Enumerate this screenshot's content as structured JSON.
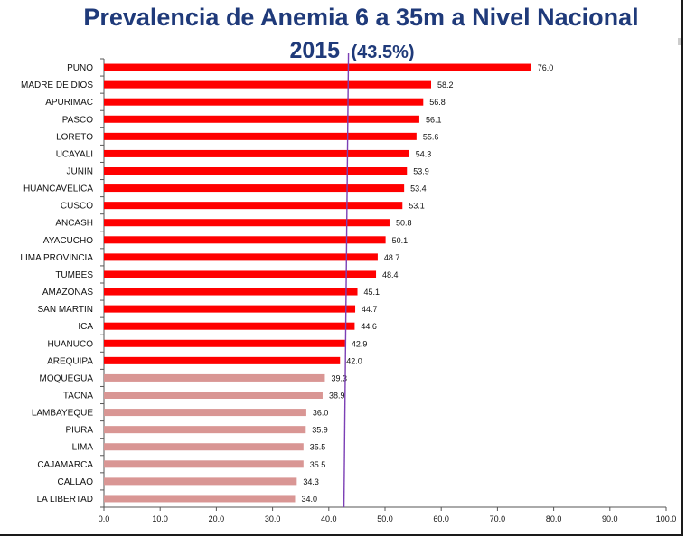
{
  "chart_data": {
    "type": "bar",
    "orientation": "horizontal",
    "title": "Prevalencia de Anemia 6 a 35m a Nivel Nacional",
    "subtitle_year": "2015",
    "subtitle_value": "(43.5%)",
    "xlim": [
      0,
      100
    ],
    "xticks": [
      "0.0",
      "10.0",
      "20.0",
      "30.0",
      "40.0",
      "50.0",
      "60.0",
      "70.0",
      "80.0",
      "90.0",
      "100.0"
    ],
    "reference_line": 43.5,
    "reference_line_color": "#7b3fb5",
    "threshold": 40,
    "colors": {
      "above": "#ff0000",
      "below": "#d99694"
    },
    "grid": false,
    "categories": [
      "PUNO",
      "MADRE DE DIOS",
      "APURIMAC",
      "PASCO",
      "LORETO",
      "UCAYALI",
      "JUNIN",
      "HUANCAVELICA",
      "CUSCO",
      "ANCASH",
      "AYACUCHO",
      "LIMA PROVINCIA",
      "TUMBES",
      "AMAZONAS",
      "SAN MARTIN",
      "ICA",
      "HUANUCO",
      "AREQUIPA",
      "MOQUEGUA",
      "TACNA",
      "LAMBAYEQUE",
      "PIURA",
      "LIMA",
      "CAJAMARCA",
      "CALLAO",
      "LA LIBERTAD"
    ],
    "values": [
      76.0,
      58.2,
      56.8,
      56.1,
      55.6,
      54.3,
      53.9,
      53.4,
      53.1,
      50.8,
      50.1,
      48.7,
      48.4,
      45.1,
      44.7,
      44.6,
      42.9,
      42.0,
      39.3,
      38.9,
      36.0,
      35.9,
      35.5,
      35.5,
      34.3,
      34.0
    ],
    "value_labels": [
      "76.0",
      "58.2",
      "56.8",
      "56.1",
      "55.6",
      "54.3",
      "53.9",
      "53.4",
      "53.1",
      "50.8",
      "50.1",
      "48.7",
      "48.4",
      "45.1",
      "44.7",
      "44.6",
      "42.9",
      "42.0",
      "39.3",
      "38.9",
      "36.0",
      "35.9",
      "35.5",
      "35.5",
      "34.3",
      "34.0"
    ]
  }
}
